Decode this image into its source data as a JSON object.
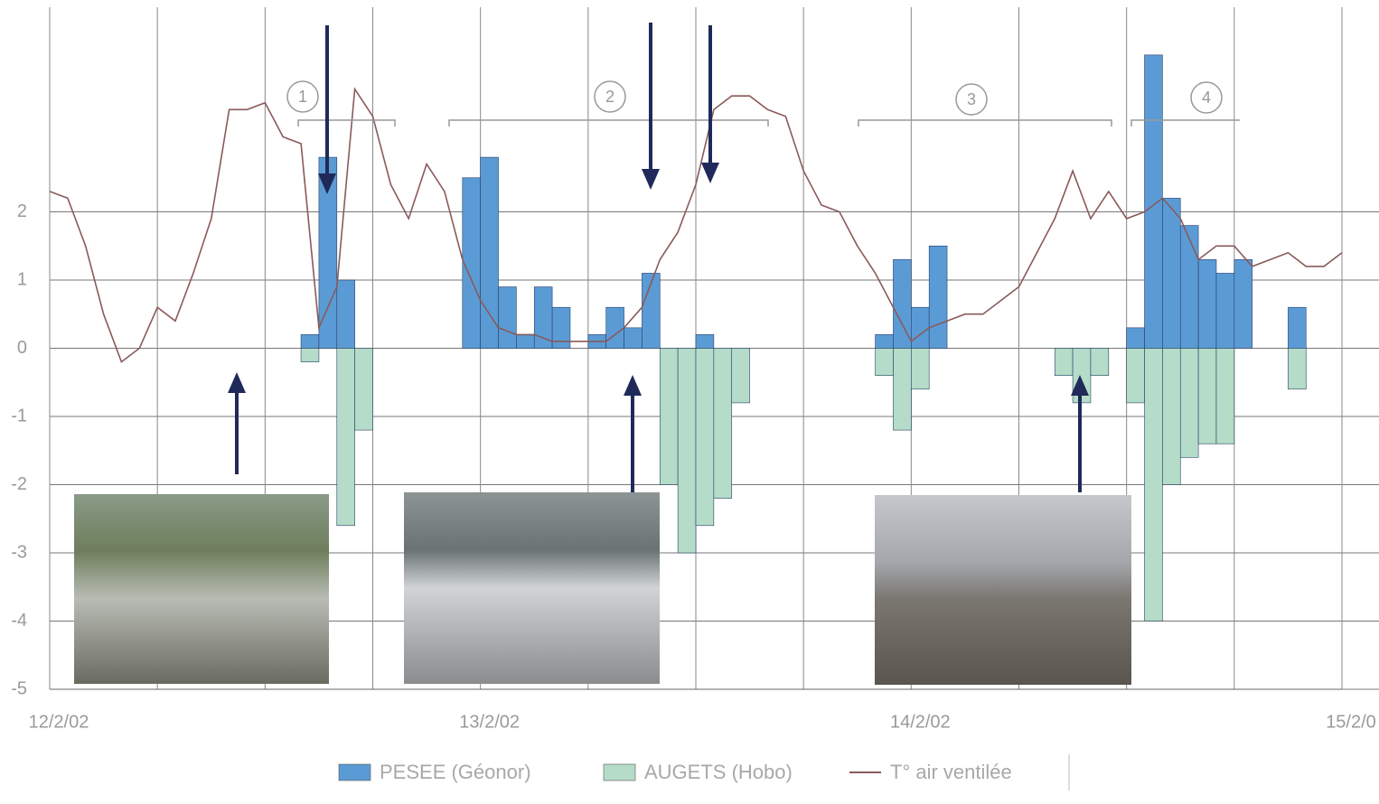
{
  "chart_data": {
    "type": "bar",
    "xlim": [
      0,
      72
    ],
    "xticks": [
      {
        "value": 0,
        "label": "12/2/02"
      },
      {
        "value": 24,
        "label": "13/2/02"
      },
      {
        "value": 48,
        "label": "14/2/02"
      },
      {
        "value": 72,
        "label": "15/2/0"
      }
    ],
    "x_grid_step": 6,
    "ylim": [
      -5,
      5
    ],
    "yticks": [
      -5,
      -4,
      -3,
      -2,
      -1,
      0,
      1,
      2
    ],
    "grid": true,
    "series": [
      {
        "name": "PESEE (Géonor)",
        "type": "bar",
        "color": "#5b9bd5",
        "x": [
          14,
          15,
          16,
          23,
          24,
          25,
          26,
          27,
          28,
          30,
          31,
          32,
          33,
          36,
          46,
          47,
          48,
          49,
          60,
          61,
          62,
          63,
          64,
          65,
          66,
          69
        ],
        "values": [
          0.2,
          2.8,
          1.0,
          2.5,
          2.8,
          0.9,
          0.2,
          0.9,
          0.6,
          0.2,
          0.6,
          0.3,
          1.1,
          0.2,
          0.2,
          1.3,
          0.6,
          1.5,
          0.3,
          4.3,
          2.2,
          1.8,
          1.3,
          1.1,
          1.3,
          0.6
        ]
      },
      {
        "name": "AUGETS (Hobo)",
        "type": "bar",
        "color": "#b4dcc8",
        "x": [
          14,
          16,
          17,
          34,
          35,
          36,
          37,
          38,
          46,
          47,
          48,
          56,
          57,
          58,
          60,
          61,
          62,
          63,
          64,
          65,
          69
        ],
        "values": [
          -0.2,
          -2.6,
          -1.2,
          -2.0,
          -3.0,
          -2.6,
          -2.2,
          -0.8,
          -0.4,
          -1.2,
          -0.6,
          -0.4,
          -0.8,
          -0.4,
          -0.8,
          -4.0,
          -2.0,
          -1.6,
          -1.4,
          -1.4,
          -0.6
        ]
      },
      {
        "name": "T° air ventilée",
        "type": "line",
        "color": "#8a5a5a",
        "x": [
          0,
          1,
          2,
          3,
          4,
          5,
          6,
          7,
          8,
          9,
          10,
          11,
          12,
          13,
          14,
          15,
          16,
          17,
          18,
          19,
          20,
          21,
          22,
          23,
          24,
          25,
          26,
          27,
          28,
          29,
          30,
          31,
          32,
          33,
          34,
          35,
          36,
          37,
          38,
          39,
          40,
          41,
          42,
          43,
          44,
          45,
          46,
          47,
          48,
          49,
          50,
          51,
          52,
          53,
          54,
          55,
          56,
          57,
          58,
          59,
          60,
          61,
          62,
          63,
          64,
          65,
          66,
          67,
          68,
          69,
          70,
          71,
          72
        ],
        "values": [
          2.3,
          2.2,
          1.5,
          0.5,
          -0.2,
          0.0,
          0.6,
          0.4,
          1.1,
          1.9,
          3.5,
          3.5,
          3.6,
          3.1,
          3.0,
          0.3,
          0.9,
          3.8,
          3.4,
          2.4,
          1.9,
          2.7,
          2.3,
          1.3,
          0.7,
          0.3,
          0.2,
          0.2,
          0.1,
          0.1,
          0.1,
          0.1,
          0.3,
          0.6,
          1.3,
          1.7,
          2.4,
          3.5,
          3.7,
          3.7,
          3.5,
          3.4,
          2.6,
          2.1,
          2.0,
          1.5,
          1.1,
          0.6,
          0.1,
          0.3,
          0.4,
          0.5,
          0.5,
          0.7,
          0.9,
          1.4,
          1.9,
          2.6,
          1.9,
          2.3,
          1.9,
          2.0,
          2.2,
          1.9,
          1.3,
          1.5,
          1.5,
          1.2,
          1.3,
          1.4,
          1.2,
          1.2,
          1.4
        ]
      }
    ],
    "annotations": [
      "1",
      "2",
      "3",
      "4"
    ]
  }
}
